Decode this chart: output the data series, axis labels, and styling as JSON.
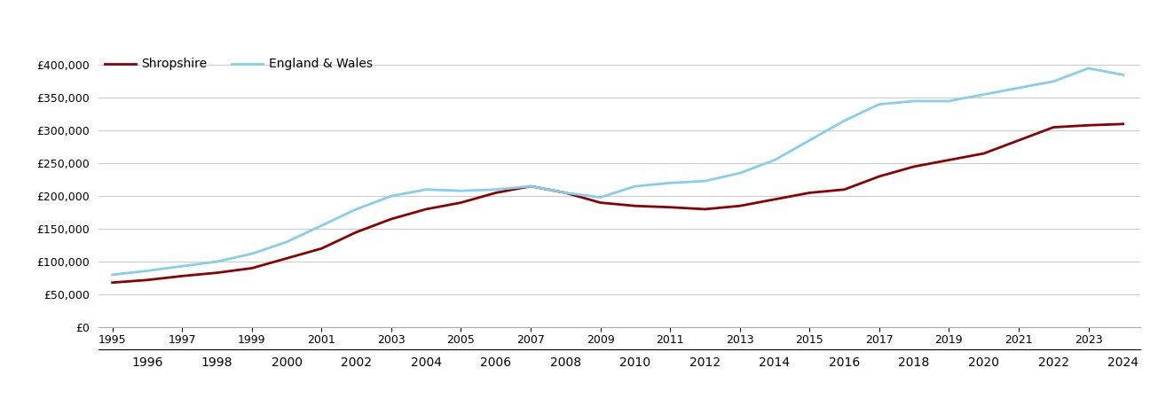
{
  "shropshire_years": [
    1995,
    1996,
    1997,
    1998,
    1999,
    2000,
    2001,
    2002,
    2003,
    2004,
    2005,
    2006,
    2007,
    2008,
    2009,
    2010,
    2011,
    2012,
    2013,
    2014,
    2015,
    2016,
    2017,
    2018,
    2019,
    2020,
    2021,
    2022,
    2023,
    2024
  ],
  "shropshire_values": [
    68000,
    72000,
    78000,
    83000,
    90000,
    105000,
    120000,
    145000,
    165000,
    180000,
    190000,
    205000,
    215000,
    205000,
    190000,
    185000,
    183000,
    180000,
    185000,
    195000,
    205000,
    210000,
    230000,
    245000,
    255000,
    265000,
    285000,
    305000,
    308000,
    310000
  ],
  "england_wales_years": [
    1995,
    1996,
    1997,
    1998,
    1999,
    2000,
    2001,
    2002,
    2003,
    2004,
    2005,
    2006,
    2007,
    2008,
    2009,
    2010,
    2011,
    2012,
    2013,
    2014,
    2015,
    2016,
    2017,
    2018,
    2019,
    2020,
    2021,
    2022,
    2023,
    2024
  ],
  "england_wales_values": [
    80000,
    86000,
    93000,
    100000,
    112000,
    130000,
    155000,
    180000,
    200000,
    210000,
    208000,
    210000,
    215000,
    205000,
    198000,
    215000,
    220000,
    223000,
    235000,
    255000,
    285000,
    315000,
    340000,
    345000,
    345000,
    355000,
    365000,
    375000,
    395000,
    385000
  ],
  "shropshire_color": "#8B0000",
  "england_wales_color": "#87CEEB",
  "shropshire_label": "Shropshire",
  "england_wales_label": "England & Wales",
  "ylim": [
    0,
    420000
  ],
  "yticks": [
    0,
    50000,
    100000,
    150000,
    200000,
    250000,
    300000,
    350000,
    400000
  ],
  "xlim_left": 1994.6,
  "xlim_right": 2024.5,
  "background_color": "#ffffff",
  "grid_color": "#cccccc",
  "legend_fontsize": 10,
  "tick_fontsize": 9,
  "linewidth": 2.0
}
